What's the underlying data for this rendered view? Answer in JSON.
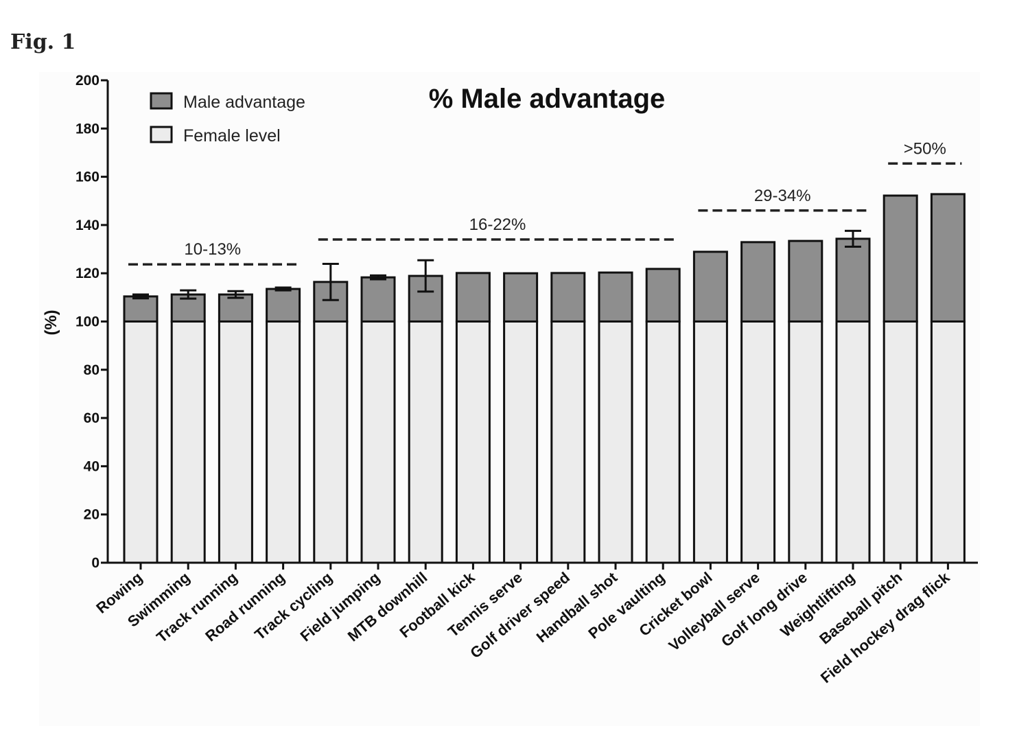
{
  "figure_label": "Fig. 1",
  "chart_data": {
    "type": "bar",
    "stacked": true,
    "title": "% Male advantage",
    "xlabel": "",
    "ylabel": "(%)",
    "ylim": [
      0,
      200
    ],
    "yticks": [
      0,
      20,
      40,
      60,
      80,
      100,
      120,
      140,
      160,
      180,
      200
    ],
    "grid": false,
    "legend_position": "top-left",
    "categories": [
      "Rowing",
      "Swimming",
      "Track running",
      "Road running",
      "Track cycling",
      "Field jumping",
      "MTB downhill",
      "Football kick",
      "Tennis serve",
      "Golf driver speed",
      "Handball shot",
      "Pole vaulting",
      "Cricket bowl",
      "Volleyball serve",
      "Golf long drive",
      "Weightlifting",
      "Baseball pitch",
      "Field hockey drag flick"
    ],
    "series": [
      {
        "name": "Female level",
        "color": "#ececec",
        "values": [
          100,
          100,
          100,
          100,
          100,
          100,
          100,
          100,
          100,
          100,
          100,
          100,
          100,
          100,
          100,
          100,
          100,
          100
        ]
      },
      {
        "name": "Male advantage",
        "color": "#8e8e8e",
        "values": [
          10.4,
          11.2,
          11.2,
          13.5,
          16.4,
          18.3,
          18.9,
          20.1,
          20.0,
          20.1,
          20.3,
          21.8,
          28.9,
          32.9,
          33.4,
          34.3,
          52.2,
          52.8
        ]
      }
    ],
    "error_bars": [
      0.8,
      1.7,
      1.4,
      0.6,
      7.5,
      0.8,
      6.5,
      0,
      0,
      0,
      0,
      0,
      0,
      0,
      0,
      3.3,
      0,
      0
    ],
    "annotations": [
      {
        "label": "10-13%",
        "from": 0,
        "to": 3,
        "level": 123.7
      },
      {
        "label": "16-22%",
        "from": 4,
        "to": 11,
        "level": 134
      },
      {
        "label": "29-34%",
        "from": 12,
        "to": 15,
        "level": 146
      },
      {
        "label": ">50%",
        "from": 16,
        "to": 17,
        "level": 165.5
      }
    ]
  }
}
